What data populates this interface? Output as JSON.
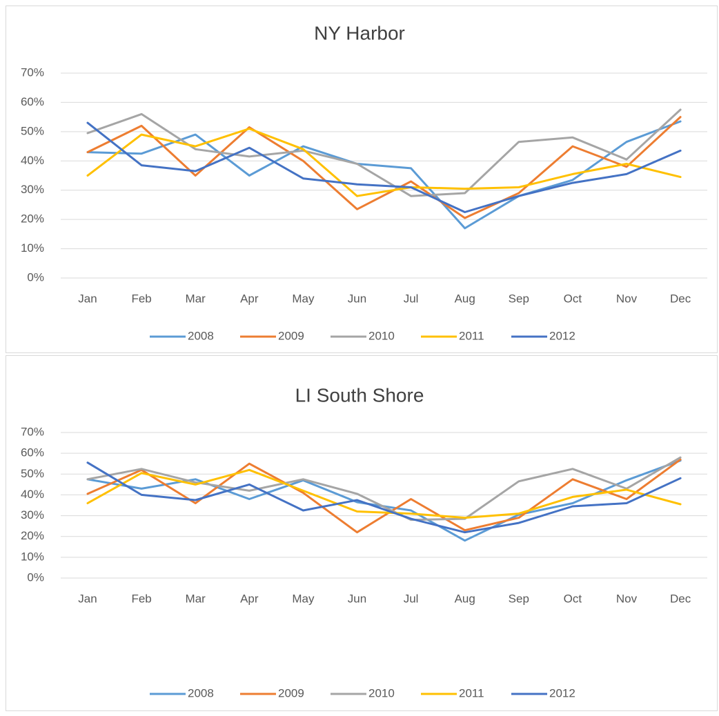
{
  "chart_data": [
    {
      "type": "line",
      "title": "NY Harbor",
      "categories": [
        "Jan",
        "Feb",
        "Mar",
        "Apr",
        "May",
        "Jun",
        "Jul",
        "Aug",
        "Sep",
        "Oct",
        "Nov",
        "Dec"
      ],
      "ylim": [
        0,
        70
      ],
      "yticks": [
        {
          "value": 0,
          "label": "0%"
        },
        {
          "value": 10,
          "label": "10%"
        },
        {
          "value": 20,
          "label": "20%"
        },
        {
          "value": 30,
          "label": "30%"
        },
        {
          "value": 40,
          "label": "40%"
        },
        {
          "value": 50,
          "label": "50%"
        },
        {
          "value": 60,
          "label": "60%"
        },
        {
          "value": 70,
          "label": "70%"
        }
      ],
      "grid": true,
      "legend": "bottom",
      "series": [
        {
          "name": "2008",
          "color": "#5b9bd5",
          "values": [
            43,
            42.5,
            49,
            35,
            45,
            39,
            37.5,
            17,
            28,
            33.5,
            46.5,
            53.5
          ]
        },
        {
          "name": "2009",
          "color": "#ed7d31",
          "values": [
            43,
            52,
            35,
            51.5,
            40,
            23.5,
            33,
            20.5,
            29,
            45,
            38,
            55
          ]
        },
        {
          "name": "2010",
          "color": "#a5a5a5",
          "values": [
            49.5,
            56,
            44,
            41.5,
            43.5,
            39,
            28,
            29,
            46.5,
            48,
            40.5,
            57.5
          ]
        },
        {
          "name": "2011",
          "color": "#ffc000",
          "values": [
            35,
            49,
            45,
            51,
            44,
            28,
            31,
            30.5,
            31,
            35.5,
            39,
            34.5
          ]
        },
        {
          "name": "2012",
          "color": "#4472c4",
          "values": [
            53,
            38.5,
            36.5,
            44.5,
            34,
            32,
            31,
            22.5,
            28,
            32.5,
            35.5,
            43.5
          ]
        }
      ]
    },
    {
      "type": "line",
      "title": "LI South Shore",
      "categories": [
        "Jan",
        "Feb",
        "Mar",
        "Apr",
        "May",
        "Jun",
        "Jul",
        "Aug",
        "Sep",
        "Oct",
        "Nov",
        "Dec"
      ],
      "ylim": [
        0,
        70
      ],
      "yticks": [
        {
          "value": 0,
          "label": "0%"
        },
        {
          "value": 10,
          "label": "10%"
        },
        {
          "value": 20,
          "label": "20%"
        },
        {
          "value": 30,
          "label": "30%"
        },
        {
          "value": 40,
          "label": "40%"
        },
        {
          "value": 50,
          "label": "50%"
        },
        {
          "value": 60,
          "label": "60%"
        },
        {
          "value": 70,
          "label": "70%"
        }
      ],
      "grid": true,
      "legend": "bottom",
      "series": [
        {
          "name": "2008",
          "color": "#5b9bd5",
          "values": [
            47.5,
            43,
            47.5,
            38,
            47,
            36.5,
            32.5,
            18,
            30.5,
            36,
            47,
            56.5
          ]
        },
        {
          "name": "2009",
          "color": "#ed7d31",
          "values": [
            40.5,
            52,
            36,
            55,
            41,
            22,
            38,
            23,
            29,
            47.5,
            38,
            57
          ]
        },
        {
          "name": "2010",
          "color": "#a5a5a5",
          "values": [
            47.5,
            52.5,
            46,
            42,
            47.5,
            40.5,
            28,
            28.5,
            46.5,
            52.5,
            43,
            58
          ]
        },
        {
          "name": "2011",
          "color": "#ffc000",
          "values": [
            36,
            50.5,
            45,
            52,
            42,
            32,
            31,
            29,
            31,
            39,
            42.5,
            35.5
          ]
        },
        {
          "name": "2012",
          "color": "#4472c4",
          "values": [
            55.5,
            40,
            37.5,
            45,
            32.5,
            37.5,
            28.5,
            22,
            26.5,
            34.5,
            36,
            48
          ]
        }
      ]
    }
  ]
}
